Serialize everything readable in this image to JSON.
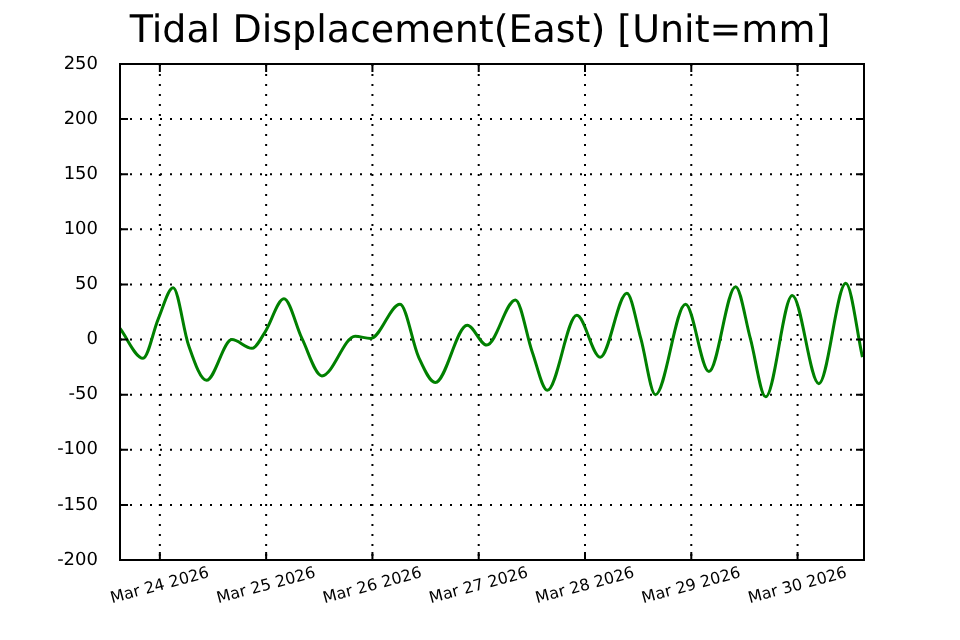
{
  "chart_data": {
    "type": "line",
    "title": "Tidal Displacement(East) [Unit=mm]",
    "x": [
      "2026-03-23T15:00",
      "2026-03-23T20:12",
      "2026-03-23T23:40",
      "2026-03-24T03:00",
      "2026-03-24T06:28",
      "2026-03-24T10:32",
      "2026-03-24T16:16",
      "2026-03-24T20:47",
      "2026-03-24T23:47",
      "2026-03-25T04:01",
      "2026-03-25T08:05",
      "2026-03-25T12:36",
      "2026-03-25T20:06",
      "2026-03-25T23:36",
      "2026-03-26T06:14",
      "2026-03-26T10:26",
      "2026-03-26T14:12",
      "2026-03-26T21:24",
      "2026-03-27T01:48",
      "2026-03-27T08:17",
      "2026-03-27T12:04",
      "2026-03-27T15:30",
      "2026-03-27T22:09",
      "2026-03-28T03:26",
      "2026-03-28T09:27",
      "2026-03-28T12:36",
      "2026-03-28T15:54",
      "2026-03-28T22:42",
      "2026-03-29T03:59",
      "2026-03-29T10:00",
      "2026-03-29T13:20",
      "2026-03-29T16:48",
      "2026-03-29T22:48",
      "2026-03-30T04:48",
      "2026-03-30T10:54",
      "2026-03-30T14:39"
    ],
    "series": [
      {
        "color": "#008000",
        "values": [
          10,
          -17,
          19,
          47,
          -5,
          -37,
          0,
          -8,
          7,
          37,
          1,
          -33,
          3,
          1,
          32,
          -16,
          -39,
          13,
          -5,
          36,
          -11,
          -46,
          22,
          -16,
          42,
          1,
          -50,
          32,
          -29,
          48,
          1,
          -52,
          40,
          -40,
          51,
          -16
        ]
      }
    ],
    "xlim": [
      "2026-03-23T15:00",
      "2026-03-30T15:00"
    ],
    "xticks": [
      {
        "value": "2026-03-24",
        "label": "Mar 24 2026"
      },
      {
        "value": "2026-03-25",
        "label": "Mar 25 2026"
      },
      {
        "value": "2026-03-26",
        "label": "Mar 26 2026"
      },
      {
        "value": "2026-03-27",
        "label": "Mar 27 2026"
      },
      {
        "value": "2026-03-28",
        "label": "Mar 28 2026"
      },
      {
        "value": "2026-03-29",
        "label": "Mar 29 2026"
      },
      {
        "value": "2026-03-30",
        "label": "Mar 30 2026"
      }
    ],
    "ylim": [
      -200,
      250
    ],
    "yticks": [
      -200,
      -150,
      -100,
      -50,
      0,
      50,
      100,
      150,
      200,
      250
    ],
    "grid": true,
    "line_style": "solid",
    "marker": "none",
    "legend": false
  }
}
